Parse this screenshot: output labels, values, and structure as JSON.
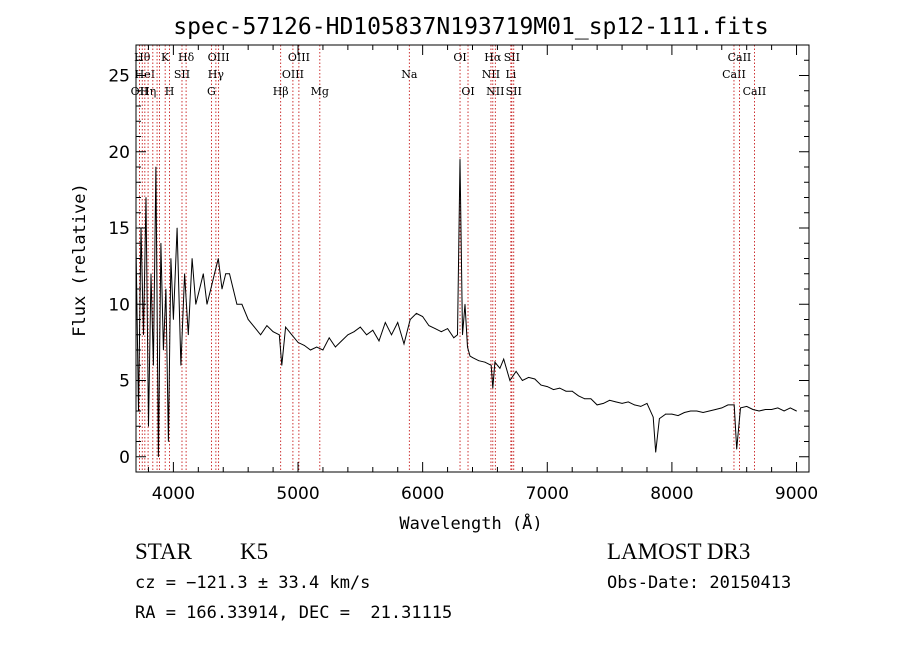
{
  "chart_data": {
    "type": "line",
    "title": "spec-57126-HD105837N193719M01_sp12-111.fits",
    "xlabel": "Wavelength (Å)",
    "ylabel": "Flux (relative)",
    "xlim": [
      3700,
      9100
    ],
    "ylim": [
      -1,
      27
    ],
    "xticks": [
      4000,
      5000,
      6000,
      7000,
      8000,
      9000
    ],
    "yticks": [
      0,
      5,
      10,
      15,
      20,
      25
    ],
    "grid": false,
    "series": [
      {
        "name": "flux",
        "x": [
          3700,
          3720,
          3740,
          3760,
          3780,
          3800,
          3820,
          3840,
          3860,
          3880,
          3900,
          3920,
          3940,
          3960,
          3980,
          4000,
          4030,
          4060,
          4090,
          4120,
          4150,
          4180,
          4210,
          4240,
          4270,
          4300,
          4330,
          4360,
          4390,
          4420,
          4450,
          4480,
          4510,
          4550,
          4600,
          4650,
          4700,
          4750,
          4800,
          4850,
          4870,
          4900,
          4950,
          5000,
          5050,
          5100,
          5150,
          5200,
          5250,
          5300,
          5350,
          5400,
          5450,
          5500,
          5550,
          5600,
          5650,
          5700,
          5750,
          5800,
          5850,
          5900,
          5950,
          6000,
          6050,
          6100,
          6150,
          6200,
          6250,
          6280,
          6300,
          6320,
          6340,
          6360,
          6380,
          6400,
          6450,
          6500,
          6550,
          6563,
          6580,
          6620,
          6650,
          6700,
          6750,
          6800,
          6850,
          6900,
          6950,
          7000,
          7050,
          7100,
          7150,
          7200,
          7250,
          7300,
          7350,
          7400,
          7450,
          7500,
          7550,
          7600,
          7650,
          7700,
          7750,
          7800,
          7850,
          7870,
          7900,
          7950,
          8000,
          8050,
          8100,
          8150,
          8200,
          8250,
          8300,
          8350,
          8400,
          8450,
          8500,
          8520,
          8550,
          8600,
          8650,
          8700,
          8750,
          8800,
          8850,
          8900,
          8950,
          9000
        ],
        "values": [
          14,
          3,
          15,
          8,
          17,
          2,
          12,
          6,
          19,
          0,
          14,
          7,
          11,
          1,
          13,
          9,
          15,
          6,
          12,
          8,
          13,
          10,
          11,
          12,
          10,
          11,
          12,
          13,
          11,
          12,
          12,
          11,
          10,
          10,
          9,
          8.5,
          8,
          8.6,
          8.2,
          8,
          6,
          8.5,
          8,
          7.5,
          7.3,
          7,
          7.2,
          7,
          7.8,
          7.2,
          7.6,
          8,
          8.2,
          8.5,
          8,
          8.3,
          7.6,
          8.8,
          8,
          8.8,
          7.4,
          9,
          9.4,
          9.2,
          8.6,
          8.4,
          8.2,
          8.4,
          7.8,
          8,
          19.5,
          8,
          10,
          7.2,
          6.6,
          6.5,
          6.3,
          6.2,
          6,
          4.5,
          6.2,
          5.8,
          6.4,
          5,
          5.6,
          5,
          5.2,
          5.1,
          4.7,
          4.6,
          4.4,
          4.5,
          4.3,
          4.3,
          4,
          3.8,
          3.8,
          3.4,
          3.5,
          3.7,
          3.6,
          3.5,
          3.6,
          3.4,
          3.3,
          3.5,
          2.6,
          0.3,
          2.5,
          2.8,
          2.8,
          2.7,
          2.9,
          3,
          3,
          2.9,
          3,
          3.1,
          3.2,
          3.4,
          3.4,
          0.5,
          3.2,
          3.3,
          3.1,
          3,
          3.1,
          3.1,
          3.2,
          3,
          3.2,
          3
        ]
      }
    ],
    "lines": [
      {
        "x": 3728,
        "tier": 2,
        "label": "OII"
      },
      {
        "x": 3750,
        "tier": 0,
        "label": "Hθ"
      },
      {
        "x": 3771,
        "tier": 1,
        "label": "HeI"
      },
      {
        "x": 3797,
        "tier": 2,
        "label": "Hη"
      },
      {
        "x": 3835,
        "tier": 2,
        "label": ""
      },
      {
        "x": 3869,
        "tier": 1,
        "label": ""
      },
      {
        "x": 3889,
        "tier": 0,
        "label": ""
      },
      {
        "x": 3934,
        "tier": 0,
        "label": "K"
      },
      {
        "x": 3969,
        "tier": 2,
        "label": "H"
      },
      {
        "x": 4069,
        "tier": 1,
        "label": "SII"
      },
      {
        "x": 4102,
        "tier": 0,
        "label": "Hδ"
      },
      {
        "x": 4305,
        "tier": 2,
        "label": "G"
      },
      {
        "x": 4341,
        "tier": 1,
        "label": "Hγ"
      },
      {
        "x": 4363,
        "tier": 0,
        "label": "OIII"
      },
      {
        "x": 4861,
        "tier": 2,
        "label": "Hβ"
      },
      {
        "x": 4959,
        "tier": 1,
        "label": "OIII"
      },
      {
        "x": 5007,
        "tier": 0,
        "label": "OIII"
      },
      {
        "x": 5175,
        "tier": 2,
        "label": "Mg"
      },
      {
        "x": 5893,
        "tier": 1,
        "label": "Na"
      },
      {
        "x": 6300,
        "tier": 0,
        "label": "OI"
      },
      {
        "x": 6364,
        "tier": 2,
        "label": "OI"
      },
      {
        "x": 6548,
        "tier": 1,
        "label": "NII"
      },
      {
        "x": 6563,
        "tier": 0,
        "label": "Hα"
      },
      {
        "x": 6583,
        "tier": 2,
        "label": "NII"
      },
      {
        "x": 6708,
        "tier": 1,
        "label": "Li"
      },
      {
        "x": 6716,
        "tier": 0,
        "label": "SII"
      },
      {
        "x": 6731,
        "tier": 2,
        "label": "SII"
      },
      {
        "x": 8498,
        "tier": 1,
        "label": "CaII"
      },
      {
        "x": 8542,
        "tier": 0,
        "label": "CaII"
      },
      {
        "x": 8662,
        "tier": 2,
        "label": "CaII"
      }
    ]
  },
  "info": {
    "class": "STAR",
    "subclass": "K5",
    "survey": "LAMOST DR3",
    "cz": "cz = −121.3 ± 33.4 km/s",
    "obs_date": "Obs-Date: 20150413",
    "coords": "RA = 166.33914, DEC =  21.31115"
  }
}
